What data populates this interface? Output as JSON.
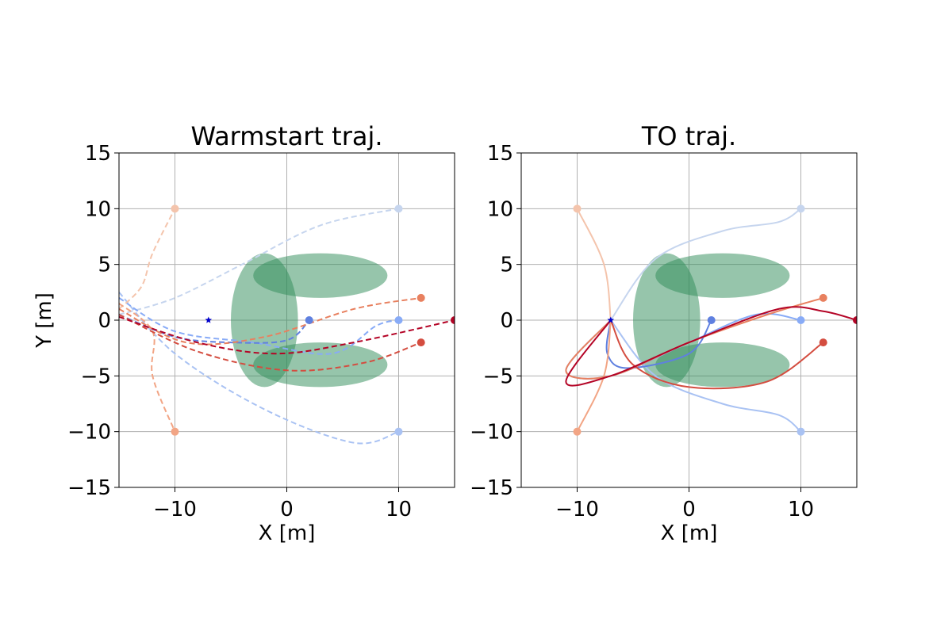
{
  "chart_data": [
    {
      "type": "line",
      "title": "Warmstart traj.",
      "xlabel": "X [m]",
      "ylabel": "Y [m]",
      "xlim": [
        -15,
        15
      ],
      "ylim": [
        -15,
        15
      ],
      "xticks": [
        "−10",
        "0",
        "10"
      ],
      "yticks": [
        "−15",
        "−10",
        "−5",
        "0",
        "5",
        "10",
        "15"
      ],
      "grid": true,
      "line_style": "dashed",
      "obstacles": [
        {
          "cx": -2,
          "cy": 0,
          "rx": 3,
          "ry": 6,
          "color": "#2e8b57"
        },
        {
          "cx": 3,
          "cy": 4,
          "rx": 6,
          "ry": 2,
          "color": "#2e8b57"
        },
        {
          "cx": 3,
          "cy": -4,
          "rx": 6,
          "ry": 2,
          "color": "#2e8b57"
        }
      ],
      "start_marker": {
        "x": -7,
        "y": 0,
        "color": "#0000cc"
      },
      "series": [
        {
          "color": "#c6d5ee",
          "end": [
            10,
            10
          ],
          "points": [
            [
              -15,
              0.5
            ],
            [
              -10,
              2
            ],
            [
              -4,
              5
            ],
            [
              3,
              8.5
            ],
            [
              10,
              10
            ]
          ]
        },
        {
          "color": "#a9c2f3",
          "end": [
            10,
            -10
          ],
          "points": [
            [
              -15,
              2.5
            ],
            [
              -10,
              -3
            ],
            [
              -2,
              -8
            ],
            [
              6,
              -11
            ],
            [
              10,
              -10
            ]
          ]
        },
        {
          "color": "#88abf7",
          "end": [
            10,
            0
          ],
          "points": [
            [
              -15,
              2
            ],
            [
              -10,
              -1
            ],
            [
              -3,
              -2
            ],
            [
              4,
              -3
            ],
            [
              8,
              -0.5
            ],
            [
              10,
              0
            ]
          ]
        },
        {
          "color": "#5f80e0",
          "end": [
            2,
            0
          ],
          "points": [
            [
              -15,
              0.5
            ],
            [
              -10,
              -1.5
            ],
            [
              -5,
              -2
            ],
            [
              0,
              -1.8
            ],
            [
              2,
              0
            ]
          ]
        },
        {
          "color": "#f4c4ac",
          "end": [
            -10,
            10
          ],
          "points": [
            [
              -15,
              1
            ],
            [
              -13,
              3
            ],
            [
              -12,
              6
            ],
            [
              -10,
              10
            ]
          ]
        },
        {
          "color": "#f2a585",
          "end": [
            -10,
            -10
          ],
          "points": [
            [
              -15,
              1.5
            ],
            [
              -12,
              -1
            ],
            [
              -12,
              -5
            ],
            [
              -10,
              -10
            ]
          ]
        },
        {
          "color": "#e8805f",
          "end": [
            12,
            2
          ],
          "points": [
            [
              -15,
              1
            ],
            [
              -9,
              -2
            ],
            [
              -2,
              -1.5
            ],
            [
              6,
              1
            ],
            [
              12,
              2
            ]
          ]
        },
        {
          "color": "#d44d40",
          "end": [
            12,
            -2
          ],
          "points": [
            [
              -15,
              0.5
            ],
            [
              -8,
              -2.8
            ],
            [
              0,
              -4.5
            ],
            [
              7,
              -3.8
            ],
            [
              12,
              -2
            ]
          ]
        },
        {
          "color": "#b40426",
          "end": [
            15,
            0
          ],
          "points": [
            [
              -15,
              0.3
            ],
            [
              -8,
              -2
            ],
            [
              -1,
              -3
            ],
            [
              6,
              -2
            ],
            [
              15,
              0
            ]
          ]
        }
      ]
    },
    {
      "type": "line",
      "title": "TO traj.",
      "xlabel": "X [m]",
      "ylabel": "",
      "xlim": [
        -15,
        15
      ],
      "ylim": [
        -15,
        15
      ],
      "xticks": [
        "−10",
        "0",
        "10"
      ],
      "yticks": [
        "−15",
        "−10",
        "−5",
        "0",
        "5",
        "10",
        "15"
      ],
      "grid": true,
      "line_style": "solid",
      "obstacles": [
        {
          "cx": -2,
          "cy": 0,
          "rx": 3,
          "ry": 6,
          "color": "#2e8b57"
        },
        {
          "cx": 3,
          "cy": 4,
          "rx": 6,
          "ry": 2,
          "color": "#2e8b57"
        },
        {
          "cx": 3,
          "cy": -4,
          "rx": 6,
          "ry": 2,
          "color": "#2e8b57"
        }
      ],
      "start_marker": {
        "x": -7,
        "y": 0,
        "color": "#0000cc"
      },
      "series": [
        {
          "color": "#c6d5ee",
          "end": [
            10,
            10
          ],
          "points": [
            [
              -7,
              0
            ],
            [
              -3,
              5.5
            ],
            [
              3,
              8
            ],
            [
              8,
              8.8
            ],
            [
              10,
              10
            ]
          ]
        },
        {
          "color": "#a9c2f3",
          "end": [
            10,
            -10
          ],
          "points": [
            [
              -7,
              0
            ],
            [
              -3,
              -5
            ],
            [
              3,
              -7.5
            ],
            [
              8,
              -8.5
            ],
            [
              10,
              -10
            ]
          ]
        },
        {
          "color": "#88abf7",
          "end": [
            10,
            0
          ],
          "points": [
            [
              -7,
              0
            ],
            [
              -11,
              -4.5
            ],
            [
              -7,
              -5
            ],
            [
              0,
              -2
            ],
            [
              6,
              0.5
            ],
            [
              10,
              0
            ]
          ]
        },
        {
          "color": "#5f80e0",
          "end": [
            2,
            0
          ],
          "points": [
            [
              -7,
              0
            ],
            [
              -7.3,
              -3
            ],
            [
              -5.5,
              -4.3
            ],
            [
              0,
              -3
            ],
            [
              2,
              0
            ]
          ]
        },
        {
          "color": "#f4c4ac",
          "end": [
            -10,
            10
          ],
          "points": [
            [
              -7,
              0
            ],
            [
              -7.6,
              5
            ],
            [
              -10,
              10
            ]
          ]
        },
        {
          "color": "#f2a585",
          "end": [
            -10,
            -10
          ],
          "points": [
            [
              -7,
              0
            ],
            [
              -7.6,
              -5
            ],
            [
              -10,
              -10
            ]
          ]
        },
        {
          "color": "#e8805f",
          "end": [
            12,
            2
          ],
          "points": [
            [
              -7,
              0
            ],
            [
              -11,
              -4.5
            ],
            [
              -7,
              -5
            ],
            [
              0,
              -2
            ],
            [
              7,
              0.5
            ],
            [
              12,
              2
            ]
          ]
        },
        {
          "color": "#d44d40",
          "end": [
            12,
            -2
          ],
          "points": [
            [
              -7,
              0
            ],
            [
              -5,
              -4
            ],
            [
              0,
              -6
            ],
            [
              7,
              -5.5
            ],
            [
              12,
              -2
            ]
          ]
        },
        {
          "color": "#b40426",
          "end": [
            15,
            0
          ],
          "points": [
            [
              -7,
              0
            ],
            [
              -11,
              -5.5
            ],
            [
              -7,
              -5
            ],
            [
              0,
              -2
            ],
            [
              8,
              1
            ],
            [
              12,
              0.8
            ],
            [
              15,
              0
            ]
          ]
        }
      ]
    }
  ]
}
